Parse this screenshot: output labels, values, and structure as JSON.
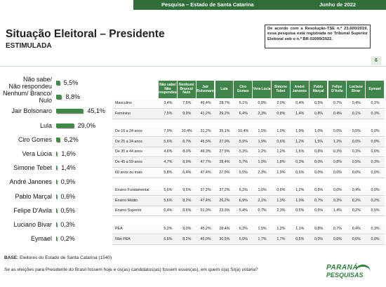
{
  "header": {
    "survey": "Pesquisa – Estado de Santa Catarina",
    "date": "Junho de 2022"
  },
  "title": "Situação Eleitoral – Presidente",
  "subtitle": "ESTIMULADA",
  "notice": "De acordo com a Resolução-TSE n.º 23.600/2019, essa pesquisa está registrada no Tribunal Superior Eleitoral sob o n.º BR-02099/2022.",
  "page_number": "6",
  "chart_data": {
    "type": "bar",
    "orientation": "horizontal",
    "color": "#3d8b45",
    "categories": [
      "Não sabe/\nNão respondeu",
      "Nenhum/ Branco/\nNulo",
      "Jair Bolsonaro",
      "Lula",
      "Ciro Gomes",
      "Vera Lúcia",
      "Simone Tebet",
      "André Janones",
      "Pablo Marçal",
      "Felipe D'Avila",
      "Luciano Bivar",
      "Eymael"
    ],
    "values": [
      5.5,
      8.8,
      45.1,
      29.0,
      6.2,
      1.6,
      1.4,
      0.9,
      0.6,
      0.5,
      0.3,
      0.2
    ],
    "value_labels": [
      "5,5%",
      "8,8%",
      "45,1%",
      "29,0%",
      "6,2%",
      "1,6%",
      "1,4%",
      "0,9%",
      "0,6%",
      "0,5%",
      "0,3%",
      "0,2%"
    ]
  },
  "table": {
    "columns": [
      "Não sabe/ Não respondeu",
      "Nenhum/ Branco/ Nulo",
      "Jair Bolsonaro",
      "Lula",
      "Ciro Gomes",
      "Vera Lúcia",
      "Simone Tebet",
      "André Janones",
      "Pablo Marçal",
      "Felipe D'Avila",
      "Luciano Bivar",
      "Eymael"
    ],
    "groups": [
      [
        {
          "label": "Masculino",
          "cells": [
            "3,4%",
            "7,5%",
            "49,4%",
            "28,7%",
            "6,1%",
            "0,8%",
            "2,0%",
            "0,4%",
            "0,5%",
            "0,7%",
            "0,4%",
            "0,1%"
          ]
        },
        {
          "label": "Feminino",
          "cells": [
            "7,5%",
            "9,9%",
            "41,2%",
            "29,2%",
            "6,4%",
            "2,3%",
            "0,8%",
            "1,4%",
            "0,8%",
            "0,4%",
            "0,1%",
            "0,3%"
          ]
        }
      ],
      [
        {
          "label": "De 16 a 24 anos",
          "cells": [
            "7,9%",
            "10,4%",
            "31,2%",
            "35,1%",
            "10,4%",
            "1,5%",
            "1,0%",
            "1,0%",
            "1,0%",
            "0,0%",
            "0,5%",
            "0,0%"
          ]
        },
        {
          "label": "De 25 a 34 anos",
          "cells": [
            "5,6%",
            "8,7%",
            "45,5%",
            "27,9%",
            "5,9%",
            "1,9%",
            "0,6%",
            "1,2%",
            "1,5%",
            "1,2%",
            "0,0%",
            "0,0%"
          ]
        },
        {
          "label": "De 35 a 44 anos",
          "cells": [
            "4,6%",
            "8,0%",
            "48,3%",
            "27,9%",
            "5,3%",
            "1,2%",
            "1,2%",
            "1,5%",
            "0,6%",
            "0,3%",
            "0,3%",
            "0,6%"
          ]
        },
        {
          "label": "De 45 a 59 anos",
          "cells": [
            "4,7%",
            "8,9%",
            "47,7%",
            "28,4%",
            "5,7%",
            "1,0%",
            "1,8%",
            "0,3%",
            "0,0%",
            "0,8%",
            "0,5%",
            "0,3%"
          ]
        },
        {
          "label": "60 anos ou mais",
          "cells": [
            "5,8%",
            "6,4%",
            "47,4%",
            "27,9%",
            "5,5%",
            "2,3%",
            "1,9%",
            "0,6%",
            "0,0%",
            "0,0%",
            "0,0%",
            "0,0%"
          ]
        }
      ],
      [
        {
          "label": "Ensino Fundamental",
          "cells": [
            "5,6%",
            "9,5%",
            "37,2%",
            "37,2%",
            "6,2%",
            "1,6%",
            "0,6%",
            "1,2%",
            "0,6%",
            "0,0%",
            "0,4%",
            "0,0%"
          ]
        },
        {
          "label": "Ensino Médio",
          "cells": [
            "5,6%",
            "8,2%",
            "47,4%",
            "26,2%",
            "6,9%",
            "2,1%",
            "1,3%",
            "1,0%",
            "0,7%",
            "0,3%",
            "0,2%",
            "0,2%"
          ]
        },
        {
          "label": "Ensino Superior",
          "cells": [
            "5,4%",
            "8,6%",
            "51,3%",
            "23,3%",
            "5,4%",
            "0,7%",
            "2,3%",
            "0,5%",
            "0,5%",
            "1,4%",
            "0,2%",
            "0,5%"
          ]
        }
      ],
      [
        {
          "label": "PEA",
          "cells": [
            "5,2%",
            "9,0%",
            "45,2%",
            "28,4%",
            "6,3%",
            "1,5%",
            "1,2%",
            "1,1%",
            "0,8%",
            "0,7%",
            "0,4%",
            "0,3%"
          ]
        },
        {
          "label": "Não PEA",
          "cells": [
            "6,5%",
            "8,2%",
            "45,0%",
            "30,5%",
            "6,0%",
            "1,7%",
            "1,7%",
            "0,5%",
            "0,0%",
            "0,0%",
            "0,0%",
            "0,0%"
          ]
        }
      ]
    ]
  },
  "footer": {
    "base_label": "BASE:",
    "base_text": "Eleitores do Estado de Santa Catarina (1540)",
    "question": "Se as eleições para Presidente do Brasil fossem hoje e os(as) candidatos(as) fossem esses(as), em quem o(a) Sr(a) votaria?",
    "logo_top": "PARANÁ",
    "logo_bottom": "PESQUISAS"
  }
}
